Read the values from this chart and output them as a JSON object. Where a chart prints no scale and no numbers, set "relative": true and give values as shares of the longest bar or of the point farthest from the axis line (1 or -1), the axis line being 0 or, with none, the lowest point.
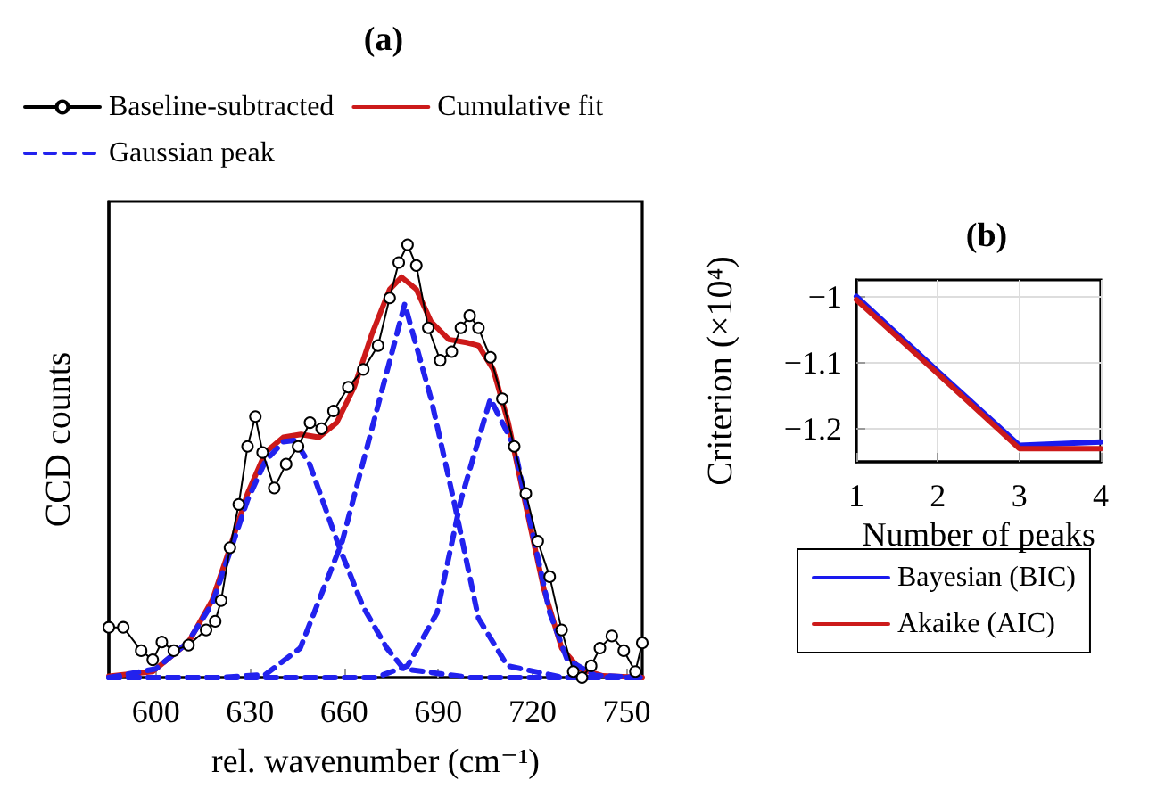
{
  "chart_data": [
    {
      "type": "line",
      "title": "(a)",
      "xlabel": "rel. wavenumber (cm⁻¹)",
      "ylabel": "CCD counts",
      "relative": true,
      "xlim": [
        585,
        755
      ],
      "xticks": [
        600,
        630,
        660,
        690,
        720,
        750
      ],
      "legend": "top",
      "tick_labels": "x",
      "series": [
        {
          "name": "Baseline-subtracted",
          "color": "#000000",
          "marker": "circle",
          "line_style": "solid",
          "x": [
            585,
            589.6,
            595.3,
            599,
            601.9,
            605.7,
            610.4,
            616,
            618.9,
            620.8,
            623.6,
            626.4,
            629.2,
            631.7,
            634,
            637.7,
            641.5,
            645.3,
            649.1,
            652.8,
            656.6,
            661.3,
            666.1,
            670.8,
            674.5,
            677.4,
            680.2,
            683,
            686.8,
            690.6,
            694.3,
            697.2,
            700,
            702.8,
            706.6,
            710.4,
            714.2,
            717.9,
            721.7,
            725.5,
            729.3,
            733,
            735.8,
            738.7,
            741.5,
            745.3,
            749.1,
            752.8,
            755
          ],
          "values": [
            0.116,
            0.116,
            0.062,
            0.041,
            0.082,
            0.062,
            0.075,
            0.11,
            0.13,
            0.178,
            0.3,
            0.4,
            0.534,
            0.603,
            0.52,
            0.438,
            0.493,
            0.534,
            0.589,
            0.575,
            0.616,
            0.671,
            0.712,
            0.767,
            0.877,
            0.959,
            1,
            0.952,
            0.808,
            0.733,
            0.753,
            0.808,
            0.836,
            0.808,
            0.74,
            0.644,
            0.534,
            0.425,
            0.315,
            0.233,
            0.11,
            0.014,
            0,
            0.027,
            0.068,
            0.096,
            0.062,
            0.014,
            0.08
          ]
        },
        {
          "name": "Cumulative fit",
          "color": "#cc1a1a",
          "marker": "none",
          "line_style": "solid",
          "x": [
            585,
            599,
            610.4,
            617.9,
            623.6,
            629.2,
            634.9,
            640.6,
            646.2,
            651.9,
            657.6,
            663.2,
            668.9,
            674.5,
            678.3,
            683,
            687.7,
            693.4,
            699,
            702.8,
            707.5,
            712.3,
            717.9,
            723.6,
            729.3,
            734.9,
            742.4,
            755
          ],
          "values": [
            0.003,
            0.014,
            0.082,
            0.178,
            0.3,
            0.425,
            0.52,
            0.555,
            0.562,
            0.555,
            0.589,
            0.671,
            0.795,
            0.897,
            0.925,
            0.897,
            0.822,
            0.781,
            0.774,
            0.767,
            0.712,
            0.589,
            0.397,
            0.205,
            0.068,
            0.021,
            0.004,
            0
          ]
        },
        {
          "name": "Gaussian peak",
          "color": "#2222ee",
          "marker": "none",
          "line_style": "dashed",
          "x": [
            585,
            600,
            610,
            617.9,
            623.6,
            629.2,
            634.9,
            640.6,
            644.3,
            649,
            658.5,
            666,
            673.6,
            679,
            700,
            755
          ],
          "values": [
            0,
            0.02,
            0.08,
            0.17,
            0.29,
            0.41,
            0.5,
            0.545,
            0.548,
            0.493,
            0.3,
            0.164,
            0.068,
            0.02,
            0,
            0
          ]
        },
        {
          "color": "#2222ee",
          "marker": "none",
          "line_style": "dashed",
          "x": [
            585,
            620,
            634.9,
            646,
            659.4,
            679.3,
            687.7,
            695.3,
            702.8,
            712,
            730,
            755
          ],
          "values": [
            0,
            0,
            0.007,
            0.068,
            0.315,
            0.863,
            0.644,
            0.397,
            0.137,
            0.027,
            0,
            0
          ]
        },
        {
          "color": "#2222ee",
          "marker": "none",
          "line_style": "dashed",
          "x": [
            585,
            670,
            680.2,
            689.6,
            697.2,
            706.6,
            714.2,
            719.8,
            725.5,
            731.1,
            740,
            755
          ],
          "values": [
            0,
            0,
            0.027,
            0.15,
            0.41,
            0.644,
            0.534,
            0.342,
            0.15,
            0.041,
            0.005,
            0
          ]
        }
      ]
    },
    {
      "type": "line",
      "title": "(b)",
      "xlabel": "Number of peaks",
      "ylabel": "Criterion (×10⁴)",
      "xlim": [
        1,
        4
      ],
      "xticks": [
        1,
        2,
        3,
        4
      ],
      "ylim": [
        -1.25,
        -0.975
      ],
      "yticks": [
        -1.2,
        -1.1,
        -1
      ],
      "grid": true,
      "legend": "bottom",
      "marker": "none",
      "series": [
        {
          "name": "Bayesian (BIC)",
          "color": "#1a1aee",
          "x": [
            1,
            2,
            3,
            4
          ],
          "values": [
            -1.0,
            -1.113,
            -1.225,
            -1.22
          ]
        },
        {
          "name": "Akaike (AIC)",
          "color": "#cc1a1a",
          "x": [
            1,
            2,
            3,
            4
          ],
          "values": [
            -1.005,
            -1.117,
            -1.23,
            -1.23
          ]
        }
      ]
    }
  ]
}
